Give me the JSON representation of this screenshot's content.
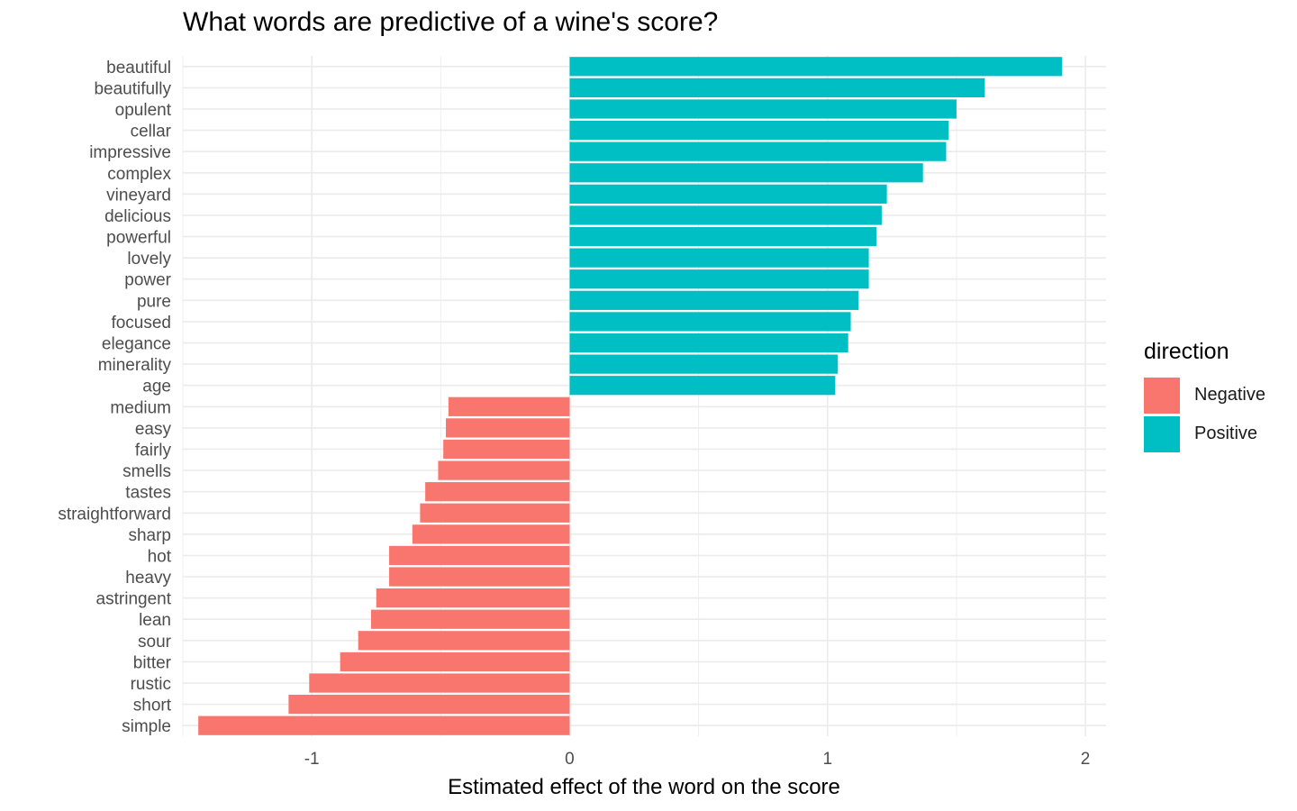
{
  "chart_data": {
    "type": "bar",
    "orientation": "horizontal",
    "title": "What words are predictive of a wine's score?",
    "xlabel": "Estimated effect of the word on the score",
    "ylabel": "",
    "xlim": [
      -1.5,
      2.08
    ],
    "xticks": [
      -1,
      0,
      1,
      2
    ],
    "xtick_labels": [
      "-1",
      "0",
      "1",
      "2"
    ],
    "grid": true,
    "legend": {
      "title": "direction",
      "position": "right",
      "entries": [
        {
          "label": "Negative",
          "color": "#F8766D"
        },
        {
          "label": "Positive",
          "color": "#00BFC4"
        }
      ]
    },
    "categories": [
      "beautiful",
      "beautifully",
      "opulent",
      "cellar",
      "impressive",
      "complex",
      "vineyard",
      "delicious",
      "powerful",
      "lovely",
      "power",
      "pure",
      "focused",
      "elegance",
      "minerality",
      "age",
      "medium",
      "easy",
      "fairly",
      "smells",
      "tastes",
      "straightforward",
      "sharp",
      "hot",
      "heavy",
      "astringent",
      "lean",
      "sour",
      "bitter",
      "rustic",
      "short",
      "simple"
    ],
    "values": [
      1.91,
      1.61,
      1.5,
      1.47,
      1.46,
      1.37,
      1.23,
      1.21,
      1.19,
      1.16,
      1.16,
      1.12,
      1.09,
      1.08,
      1.04,
      1.03,
      -0.47,
      -0.48,
      -0.49,
      -0.51,
      -0.56,
      -0.58,
      -0.61,
      -0.7,
      -0.7,
      -0.75,
      -0.77,
      -0.82,
      -0.89,
      -1.01,
      -1.09,
      -1.44
    ],
    "direction": [
      "Positive",
      "Positive",
      "Positive",
      "Positive",
      "Positive",
      "Positive",
      "Positive",
      "Positive",
      "Positive",
      "Positive",
      "Positive",
      "Positive",
      "Positive",
      "Positive",
      "Positive",
      "Positive",
      "Negative",
      "Negative",
      "Negative",
      "Negative",
      "Negative",
      "Negative",
      "Negative",
      "Negative",
      "Negative",
      "Negative",
      "Negative",
      "Negative",
      "Negative",
      "Negative",
      "Negative",
      "Negative"
    ]
  }
}
